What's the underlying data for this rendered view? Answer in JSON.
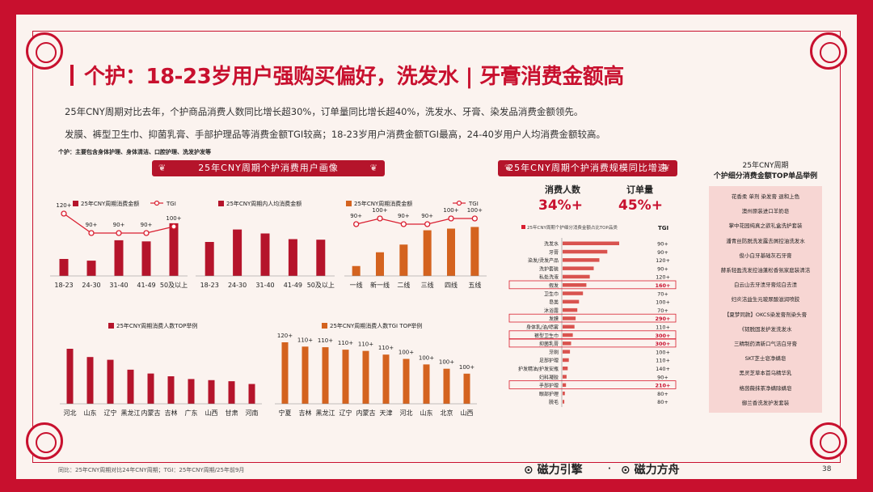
{
  "title": "个护：18-23岁用户强购买偏好，洗发水 | 牙膏消费金额高",
  "paragraphs": [
    "25年CNY周期对比去年，个护商品消费人数同比增长超30%，订单量同比增长超40%，洗发水、牙膏、染发品消费金额领先。",
    "发膜、裤型卫生巾、抑菌乳膏、手部护理品等消费金额TGI较高；18-23岁用户消费金额TGI最高，24-40岁用户人均消费金额较高。"
  ],
  "note": "个护：主要包含身体护理、身体清洁、口腔护理、洗发护发等",
  "banners": {
    "left": "25年CNY周期个护消费用户画像",
    "middle": "25年CNY周期个护消费规模同比增速"
  },
  "kpis": [
    {
      "label": "消费人数",
      "value": "34%+"
    },
    {
      "label": "订单量",
      "value": "45%+"
    }
  ],
  "right_panel": {
    "title_line1": "25年CNY周期",
    "title_line2": "个护细分消费金额TOP单品举例",
    "items": [
      "花香柔 单剂 染发膏 退和上色",
      "澳州原装进口羊奶皂",
      "掌中花园纯真之欲礼盒洗护套装",
      "潘青丝防脱洗发露去屑控油洗发水",
      "俊小白牙基础灰石牙膏",
      "赫系轻盈洗发控油蓬松香氛家庭装清洁",
      "白云山去牙渍牙膏炫白去渍",
      "妇炎洁益生元玻尿酸滋润喷胶",
      "【夏梦同款】OKCS染发膏剂染头膏",
      "《韧脱固发护发洗发水",
      "三精制药清新口气洁白牙膏",
      "SKT芝士皂净螨皂",
      "黑灵芝草本首乌精华乳",
      "格茵薇抹茶净螨除螨皂",
      "御兰香洗发护发套装"
    ]
  },
  "footer": "同比：25年CNY周期对比24年CNY周期；TGI：25年CNY周期/25年前9月",
  "logos": [
    "磁力引擎",
    "磁力方舟"
  ],
  "page_number": "38",
  "chart_data": [
    {
      "type": "bar",
      "title": "age-amount-tgi",
      "legend": [
        "25年CNY周期消费金额",
        "TGI"
      ],
      "categories": [
        "18-23",
        "24-30",
        "31-40",
        "41-49",
        "50及以上"
      ],
      "values": [
        3,
        2.7,
        6.3,
        6.1,
        9.3
      ],
      "tgi": [
        120,
        90,
        90,
        90,
        100
      ],
      "tgi_labels": [
        "120+",
        "90+",
        "90+",
        "90+",
        "100+"
      ]
    },
    {
      "type": "bar",
      "title": "age-per-capita",
      "legend": [
        "25年CNY周期内人均消费金额"
      ],
      "categories": [
        "18-23",
        "24-30",
        "31-40",
        "41-49",
        "50及以上"
      ],
      "values": [
        6,
        8.2,
        7.5,
        6.5,
        6.4
      ]
    },
    {
      "type": "bar",
      "title": "city-amount-tgi",
      "legend": [
        "25年CNY周期消费金额",
        "TGI"
      ],
      "categories": [
        "一线",
        "新一线",
        "二线",
        "三线",
        "四线",
        "五线"
      ],
      "values": [
        1.8,
        4.3,
        5.7,
        8.3,
        8.6,
        8.9
      ],
      "tgi": [
        90,
        100,
        90,
        90,
        100,
        100
      ],
      "tgi_labels": [
        "90+",
        "100+",
        "90+",
        "90+",
        "100+",
        "100+"
      ]
    },
    {
      "type": "bar",
      "title": "25年CNY周期消费人数TOP举例",
      "legend": [
        "25年CNY周期消费人数TOP举例"
      ],
      "categories": [
        "河北",
        "山东",
        "辽宁",
        "黑龙江",
        "内蒙古",
        "吉林",
        "广东",
        "山西",
        "甘肃",
        "河南"
      ],
      "values": [
        10,
        8.5,
        8,
        6.2,
        5.5,
        5,
        4.5,
        4.3,
        4.1,
        3.6
      ]
    },
    {
      "type": "bar",
      "title": "25年CNY周期消费人数TGI TOP举例",
      "legend": [
        "25年CNY周期消费人数TGI TOP举例"
      ],
      "categories": [
        "宁夏",
        "吉林",
        "黑龙江",
        "辽宁",
        "内蒙古",
        "天津",
        "河北",
        "山东",
        "北京",
        "山西"
      ],
      "values": [
        120,
        110,
        110,
        110,
        110,
        110,
        100,
        100,
        100,
        100
      ],
      "value_labels": [
        "120+",
        "110+",
        "110+",
        "110+",
        "110+",
        "110+",
        "100+",
        "100+",
        "100+",
        "100+"
      ],
      "bar_heights": [
        10,
        9.3,
        9.2,
        8.8,
        8.6,
        8.0,
        7.3,
        6.4,
        5.7,
        4.9
      ]
    },
    {
      "type": "bar",
      "orientation": "horizontal",
      "title": "25年CNY周期个护细分消费金额占比TOP品类",
      "tgi_header": "TGI",
      "categories": [
        "洗发水",
        "牙膏",
        "染发/烫发产品",
        "洗护套装",
        "私处洗液",
        "假发",
        "卫生巾",
        "皂类",
        "沐浴露",
        "发膜",
        "身体乳/油/喷雾",
        "裤型卫生巾",
        "抑菌乳膏",
        "牙刷",
        "足部护理",
        "护发精油/护发安瓶",
        "妇科凝胶",
        "手部护理",
        "眼部护理",
        "脱毛"
      ],
      "values": [
        10,
        7.9,
        6.5,
        5.5,
        4.8,
        4.2,
        3.6,
        2.9,
        2.6,
        2.3,
        2.1,
        1.8,
        1.5,
        1.3,
        1.1,
        0.9,
        0.7,
        0.6,
        0.4,
        0.3
      ],
      "tgi_labels": [
        "90+",
        "90+",
        "120+",
        "90+",
        "120+",
        "160+",
        "70+",
        "100+",
        "70+",
        "290+",
        "110+",
        "300+",
        "300+",
        "100+",
        "110+",
        "140+",
        "90+",
        "210+",
        "80+",
        "80+"
      ],
      "highlighted": [
        "假发",
        "发膜",
        "裤型卫生巾",
        "抑菌乳膏",
        "手部护理"
      ]
    }
  ]
}
